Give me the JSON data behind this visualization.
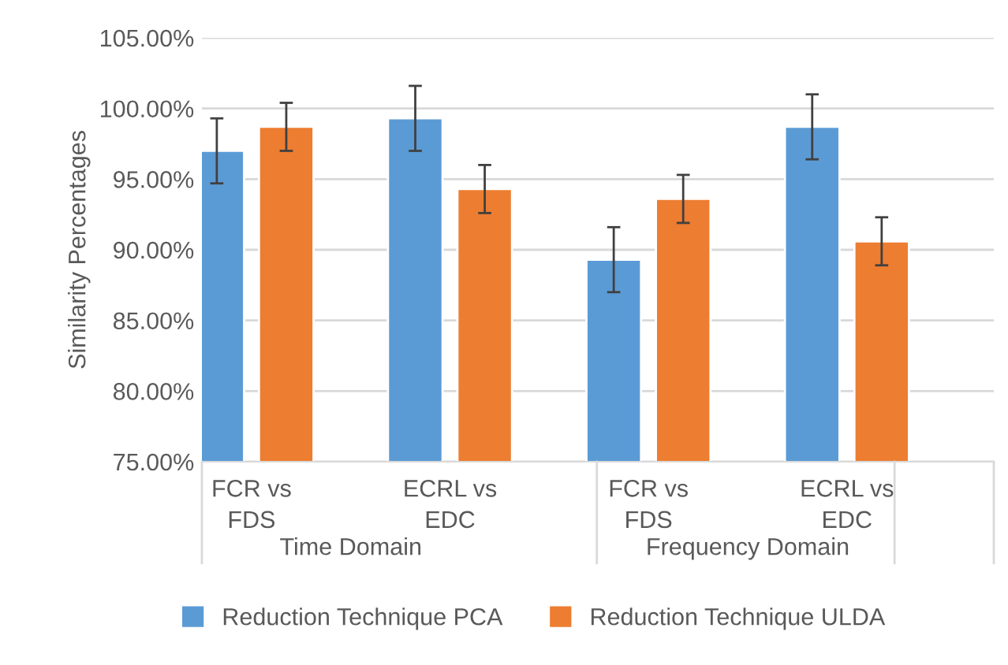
{
  "chart_data": {
    "type": "bar",
    "ylabel": "Similarity Percentages",
    "categories": [
      "FCR vs\nFDS",
      "ECRL vs\nEDC",
      "FCR vs\nFDS",
      "ECRL vs\nEDC"
    ],
    "annotations": [
      "Time Domain",
      "Frequency Domain"
    ],
    "series": [
      {
        "name": "Reduction Technique PCA",
        "color": "#5b9bd5",
        "values": [
          97.0,
          99.3,
          89.3,
          98.7
        ],
        "errors": [
          2.3,
          2.3,
          2.3,
          2.3
        ]
      },
      {
        "name": "Reduction Technique ULDA",
        "color": "#ed7d31",
        "values": [
          98.7,
          94.3,
          93.6,
          90.6
        ],
        "errors": [
          1.7,
          1.7,
          1.7,
          1.7
        ]
      }
    ],
    "ylim": [
      75,
      105
    ],
    "yticks": [
      {
        "value": 75,
        "label": "75.00%"
      },
      {
        "value": 80,
        "label": "80.00%"
      },
      {
        "value": 85,
        "label": "85.00%"
      },
      {
        "value": 90,
        "label": "90.00%"
      },
      {
        "value": 95,
        "label": "95.00%"
      },
      {
        "value": 100,
        "label": "100.00%"
      },
      {
        "value": 105,
        "label": "105.00%"
      }
    ],
    "grid": "y",
    "legend": "bottom"
  }
}
